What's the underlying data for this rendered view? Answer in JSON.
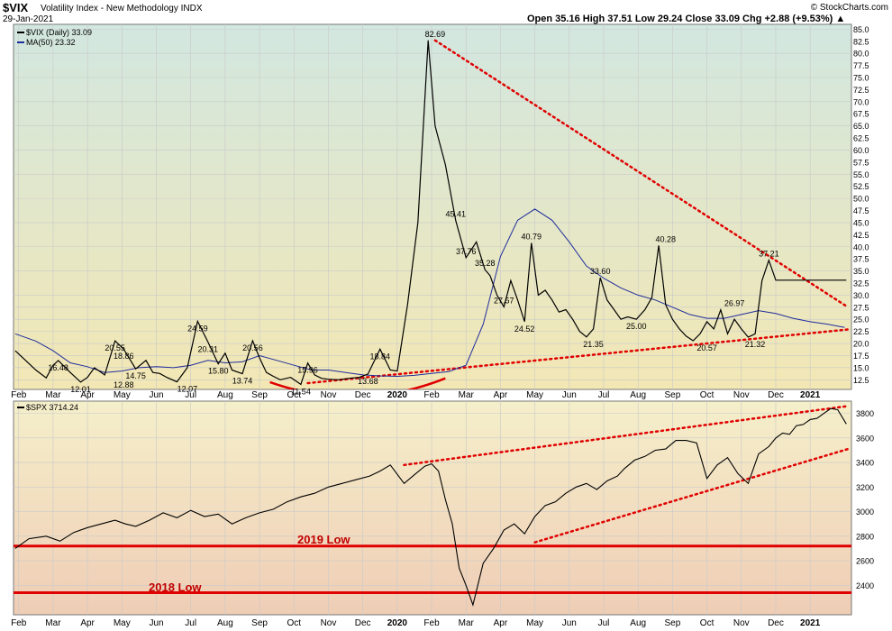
{
  "header": {
    "symbol": "$VIX",
    "name": "Volatility Index - New Methodology INDX",
    "date": "29-Jan-2021",
    "ohlc": "Open 35.16  High 37.51  Low 29.24  Close 33.09  Chg +2.88 (+9.53%) ▲",
    "copyright": "© StockCharts.com"
  },
  "legend": {
    "vix": "$VIX (Daily) 33.09",
    "ma": "MA(50) 23.32",
    "spx": "$SPX 3714.24"
  },
  "colors": {
    "vix_line": "#000000",
    "ma_line": "#1f2d9c",
    "trend_dotted": "#e00000",
    "support": "#e00000",
    "top_bg_top": "#d2e7e0",
    "top_bg_bottom": "#f3e7b4",
    "bottom_bg_top": "#f5efca",
    "bottom_bg_bottom": "#efcdb6"
  },
  "months": [
    "Feb",
    "Mar",
    "Apr",
    "May",
    "Jun",
    "Jul",
    "Aug",
    "Sep",
    "Oct",
    "Nov",
    "Dec",
    "2020",
    "Feb",
    "Mar",
    "Apr",
    "May",
    "Jun",
    "Jul",
    "Aug",
    "Sep",
    "Oct",
    "Nov",
    "Dec",
    "2021"
  ],
  "annotations": {
    "low_2019": "2019 Low",
    "low_2018": "2018 Low"
  },
  "chart_data": [
    {
      "type": "line",
      "title": "$VIX Volatility Index - New Methodology INDX",
      "x_unit": "month index (0 = Feb 2019)",
      "x_range": [
        -0.15,
        24.2
      ],
      "y_range": [
        10.5,
        86
      ],
      "y_ticks": [
        12.5,
        15,
        17.5,
        20,
        22.5,
        25,
        27.5,
        30,
        32.5,
        35,
        37.5,
        40,
        42.5,
        45,
        47.5,
        50,
        52.5,
        55,
        57.5,
        60,
        62.5,
        65,
        67.5,
        70,
        72.5,
        75,
        77.5,
        80,
        82.5,
        85
      ],
      "y_tick_labels": [
        "12.5",
        "15.0",
        "17.5",
        "20.0",
        "22.5",
        "25.0",
        "27.5",
        "30.0",
        "32.5",
        "35.0",
        "37.5",
        "40.0",
        "42.5",
        "45.0",
        "47.5",
        "50.0",
        "52.5",
        "55.0",
        "57.5",
        "60.0",
        "62.5",
        "65.0",
        "67.5",
        "70.0",
        "72.5",
        "75.0",
        "77.5",
        "80.0",
        "82.5",
        "85.0"
      ],
      "series": [
        {
          "name": "$VIX (Daily)",
          "x": [
            -0.1,
            0.2,
            0.5,
            0.8,
            1.0,
            1.15,
            1.5,
            1.8,
            2.0,
            2.2,
            2.5,
            2.8,
            3.05,
            3.4,
            3.7,
            3.9,
            4.1,
            4.3,
            4.6,
            4.9,
            5.2,
            5.5,
            5.8,
            6.0,
            6.2,
            6.5,
            6.8,
            7.0,
            7.2,
            7.4,
            7.6,
            7.9,
            8.2,
            8.4,
            8.6,
            8.8,
            9.0,
            9.3,
            9.6,
            9.9,
            10.15,
            10.5,
            10.8,
            11.0,
            11.3,
            11.6,
            11.9,
            12.1,
            12.4,
            12.7,
            13.0,
            13.3,
            13.55,
            13.7,
            13.9,
            14.1,
            14.3,
            14.5,
            14.7,
            14.9,
            15.1,
            15.3,
            15.5,
            15.7,
            15.9,
            16.1,
            16.3,
            16.5,
            16.7,
            16.9,
            17.1,
            17.3,
            17.5,
            17.7,
            17.95,
            18.2,
            18.4,
            18.6,
            18.8,
            19.0,
            19.2,
            19.4,
            19.6,
            19.8,
            20.0,
            20.2,
            20.4,
            20.6,
            20.8,
            21.0,
            21.2,
            21.4,
            21.6,
            21.8,
            22.0,
            22.2,
            22.4,
            22.6,
            22.8,
            23.0,
            23.2,
            23.4,
            23.6,
            23.75,
            23.9,
            24.05
          ],
          "y": [
            18.5,
            16.5,
            14.5,
            12.88,
            15.5,
            16.48,
            14.0,
            12.01,
            13.0,
            15.0,
            13.5,
            20.55,
            18.86,
            14.75,
            16.5,
            14.0,
            13.8,
            13.0,
            12.07,
            15.0,
            24.59,
            20.31,
            15.8,
            18.0,
            14.5,
            13.74,
            20.56,
            17.0,
            14.0,
            13.2,
            12.5,
            13.0,
            11.54,
            15.96,
            13.5,
            12.8,
            12.6,
            12.5,
            12.8,
            13.0,
            13.68,
            18.84,
            14.5,
            14.3,
            28.0,
            45.0,
            82.69,
            65.0,
            57.0,
            45.41,
            37.76,
            41.0,
            35.28,
            34.0,
            30.0,
            27.57,
            33.0,
            29.0,
            24.52,
            40.79,
            30.0,
            31.0,
            29.0,
            26.5,
            27.0,
            25.0,
            22.5,
            21.35,
            23.0,
            33.6,
            29.0,
            27.0,
            25.0,
            25.5,
            25.0,
            27.0,
            29.5,
            40.28,
            28.0,
            25.0,
            23.0,
            21.5,
            20.57,
            22.0,
            24.5,
            23.0,
            26.97,
            22.0,
            25.0,
            23.0,
            21.32,
            22.0,
            33.0,
            37.21,
            33.09,
            33.09,
            33.09,
            33.09,
            33.09,
            33.09,
            33.09,
            33.09,
            33.09,
            33.09,
            33.09,
            33.09
          ]
        },
        {
          "name": "MA(50)",
          "x": [
            -0.1,
            0.5,
            1.0,
            1.5,
            2.0,
            2.5,
            3.0,
            3.5,
            4.0,
            4.5,
            5.0,
            5.5,
            6.0,
            6.5,
            7.0,
            7.5,
            8.0,
            8.5,
            9.0,
            9.5,
            10.0,
            10.5,
            11.0,
            11.5,
            12.0,
            12.5,
            13.0,
            13.5,
            14.0,
            14.5,
            15.0,
            15.5,
            16.0,
            16.5,
            17.0,
            17.5,
            18.0,
            18.5,
            19.0,
            19.5,
            20.0,
            20.5,
            21.0,
            21.5,
            22.0,
            22.5,
            23.0,
            23.5,
            24.0
          ],
          "y": [
            22.0,
            20.5,
            18.5,
            16.0,
            15.2,
            14.0,
            14.3,
            15.0,
            15.2,
            15.0,
            15.5,
            16.5,
            16.0,
            16.2,
            17.5,
            16.5,
            15.5,
            14.5,
            14.5,
            14.0,
            13.5,
            13.3,
            13.2,
            13.4,
            13.8,
            14.2,
            15.5,
            24.0,
            38.0,
            45.5,
            47.8,
            45.5,
            41.0,
            36.0,
            33.5,
            31.5,
            30.0,
            29.0,
            27.5,
            26.0,
            25.2,
            25.2,
            26.0,
            26.8,
            26.2,
            25.2,
            24.5,
            24.0,
            23.32
          ]
        }
      ],
      "data_labels": [
        {
          "x": 3.05,
          "y": 12.88,
          "text": "12.88"
        },
        {
          "x": 1.15,
          "y": 16.48,
          "text": "16.48"
        },
        {
          "x": 1.8,
          "y": 12.01,
          "text": "12.01"
        },
        {
          "x": 2.8,
          "y": 20.55,
          "text": "20.55"
        },
        {
          "x": 3.05,
          "y": 18.86,
          "text": "18.86"
        },
        {
          "x": 3.4,
          "y": 14.75,
          "text": "14.75"
        },
        {
          "x": 5.2,
          "y": 24.59,
          "text": "24.59"
        },
        {
          "x": 5.5,
          "y": 20.31,
          "text": "20.31"
        },
        {
          "x": 5.8,
          "y": 15.8,
          "text": "15.80"
        },
        {
          "x": 4.9,
          "y": 12.07,
          "text": "12.07"
        },
        {
          "x": 6.5,
          "y": 13.74,
          "text": "13.74"
        },
        {
          "x": 6.8,
          "y": 20.56,
          "text": "20.56"
        },
        {
          "x": 8.4,
          "y": 15.96,
          "text": "15.96"
        },
        {
          "x": 8.2,
          "y": 11.54,
          "text": "11.54"
        },
        {
          "x": 10.15,
          "y": 13.68,
          "text": "13.68"
        },
        {
          "x": 10.5,
          "y": 18.84,
          "text": "18.84"
        },
        {
          "x": 12.1,
          "y": 82.69,
          "text": "82.69"
        },
        {
          "x": 12.7,
          "y": 45.41,
          "text": "45.41"
        },
        {
          "x": 13.0,
          "y": 37.76,
          "text": "37.76"
        },
        {
          "x": 13.55,
          "y": 35.28,
          "text": "35.28"
        },
        {
          "x": 14.1,
          "y": 27.57,
          "text": "27.57"
        },
        {
          "x": 14.7,
          "y": 24.52,
          "text": "24.52"
        },
        {
          "x": 14.9,
          "y": 40.79,
          "text": "40.79"
        },
        {
          "x": 16.7,
          "y": 21.35,
          "text": "21.35"
        },
        {
          "x": 16.9,
          "y": 33.6,
          "text": "33.60"
        },
        {
          "x": 17.95,
          "y": 25.0,
          "text": "25.00"
        },
        {
          "x": 18.8,
          "y": 40.28,
          "text": "40.28"
        },
        {
          "x": 20.0,
          "y": 20.57,
          "text": "20.57"
        },
        {
          "x": 20.8,
          "y": 26.97,
          "text": "26.97"
        },
        {
          "x": 21.4,
          "y": 21.32,
          "text": "21.32"
        },
        {
          "x": 21.8,
          "y": 37.21,
          "text": "37.21"
        }
      ],
      "trendlines": [
        {
          "style": "dotted",
          "from": {
            "x": 12.1,
            "y": 82.69
          },
          "to": {
            "x": 24.1,
            "y": 27.5
          }
        },
        {
          "style": "dotted",
          "from": {
            "x": 8.4,
            "y": 11.8
          },
          "to": {
            "x": 24.1,
            "y": 22.9
          }
        },
        {
          "style": "arc",
          "from": {
            "x": 7.3,
            "y": 12.0
          },
          "to": {
            "x": 12.4,
            "y": 12.8
          },
          "depth_y": 9.0
        }
      ],
      "grid": true
    },
    {
      "type": "line",
      "title": "$SPX",
      "x_unit": "month index (0 = Feb 2019)",
      "x_range": [
        -0.15,
        24.2
      ],
      "y_range": [
        2160,
        3900
      ],
      "y_ticks": [
        2400,
        2600,
        2800,
        3000,
        3200,
        3400,
        3600,
        3800
      ],
      "series": [
        {
          "name": "$SPX",
          "x": [
            -0.1,
            0.3,
            0.8,
            1.2,
            1.6,
            2.0,
            2.4,
            2.8,
            3.1,
            3.4,
            3.8,
            4.2,
            4.6,
            5.0,
            5.4,
            5.8,
            6.2,
            6.6,
            7.0,
            7.4,
            7.8,
            8.2,
            8.6,
            9.0,
            9.4,
            9.8,
            10.2,
            10.5,
            10.8,
            11.2,
            11.5,
            11.8,
            12.0,
            12.2,
            12.4,
            12.6,
            12.8,
            13.0,
            13.2,
            13.5,
            13.8,
            14.1,
            14.4,
            14.7,
            15.0,
            15.3,
            15.6,
            15.9,
            16.2,
            16.5,
            16.8,
            17.1,
            17.4,
            17.6,
            17.9,
            18.2,
            18.5,
            18.8,
            19.1,
            19.4,
            19.7,
            20.0,
            20.3,
            20.6,
            20.9,
            21.2,
            21.5,
            21.8,
            22.0,
            22.2,
            22.4,
            22.6,
            22.8,
            23.0,
            23.2,
            23.4,
            23.6,
            23.8,
            24.05
          ],
          "y": [
            2700,
            2780,
            2800,
            2760,
            2830,
            2870,
            2900,
            2930,
            2900,
            2880,
            2930,
            2990,
            2950,
            3010,
            2960,
            2980,
            2900,
            2950,
            2990,
            3020,
            3080,
            3120,
            3150,
            3200,
            3230,
            3260,
            3290,
            3330,
            3380,
            3230,
            3300,
            3370,
            3390,
            3330,
            3100,
            2900,
            2540,
            2400,
            2240,
            2580,
            2700,
            2850,
            2900,
            2820,
            2960,
            3050,
            3080,
            3150,
            3200,
            3230,
            3180,
            3250,
            3290,
            3350,
            3420,
            3450,
            3500,
            3510,
            3580,
            3580,
            3560,
            3270,
            3380,
            3440,
            3310,
            3230,
            3470,
            3530,
            3600,
            3640,
            3630,
            3700,
            3710,
            3750,
            3760,
            3800,
            3840,
            3830,
            3714
          ]
        }
      ],
      "support_lines": [
        {
          "label": "2019 Low",
          "y": 2720
        },
        {
          "label": "2018 Low",
          "y": 2340
        }
      ],
      "trendlines": [
        {
          "style": "dotted",
          "from": {
            "x": 11.2,
            "y": 3380
          },
          "to": {
            "x": 24.1,
            "y": 3860
          }
        },
        {
          "style": "dotted",
          "from": {
            "x": 15.0,
            "y": 2750
          },
          "to": {
            "x": 24.1,
            "y": 3510
          }
        }
      ],
      "grid": true
    }
  ]
}
